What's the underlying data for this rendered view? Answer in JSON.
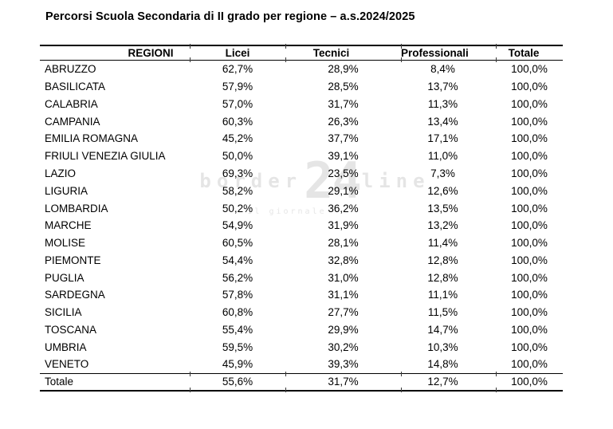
{
  "title": "Percorsi Scuola Secondaria di II grado per regione – a.s.2024/2025",
  "watermark": {
    "left": "border",
    "number": "24",
    "right": "line",
    "subtitle": "- Il giornale -"
  },
  "table": {
    "headers": [
      "REGIONI",
      "Licei",
      "Tecnici",
      "Professionali",
      "Totale"
    ],
    "rows": [
      {
        "region": "ABRUZZO",
        "values": [
          "62,7%",
          "28,9%",
          "8,4%",
          "100,0%"
        ]
      },
      {
        "region": "BASILICATA",
        "values": [
          "57,9%",
          "28,5%",
          "13,7%",
          "100,0%"
        ]
      },
      {
        "region": "CALABRIA",
        "values": [
          "57,0%",
          "31,7%",
          "11,3%",
          "100,0%"
        ]
      },
      {
        "region": "CAMPANIA",
        "values": [
          "60,3%",
          "26,3%",
          "13,4%",
          "100,0%"
        ]
      },
      {
        "region": "EMILIA ROMAGNA",
        "values": [
          "45,2%",
          "37,7%",
          "17,1%",
          "100,0%"
        ]
      },
      {
        "region": "FRIULI VENEZIA GIULIA",
        "values": [
          "50,0%",
          "39,1%",
          "11,0%",
          "100,0%"
        ]
      },
      {
        "region": "LAZIO",
        "values": [
          "69,3%",
          "23,5%",
          "7,3%",
          "100,0%"
        ]
      },
      {
        "region": "LIGURIA",
        "values": [
          "58,2%",
          "29,1%",
          "12,6%",
          "100,0%"
        ]
      },
      {
        "region": "LOMBARDIA",
        "values": [
          "50,2%",
          "36,2%",
          "13,5%",
          "100,0%"
        ]
      },
      {
        "region": "MARCHE",
        "values": [
          "54,9%",
          "31,9%",
          "13,2%",
          "100,0%"
        ]
      },
      {
        "region": "MOLISE",
        "values": [
          "60,5%",
          "28,1%",
          "11,4%",
          "100,0%"
        ]
      },
      {
        "region": "PIEMONTE",
        "values": [
          "54,4%",
          "32,8%",
          "12,8%",
          "100,0%"
        ]
      },
      {
        "region": "PUGLIA",
        "values": [
          "56,2%",
          "31,0%",
          "12,8%",
          "100,0%"
        ]
      },
      {
        "region": "SARDEGNA",
        "values": [
          "57,8%",
          "31,1%",
          "11,1%",
          "100,0%"
        ]
      },
      {
        "region": "SICILIA",
        "values": [
          "60,8%",
          "27,7%",
          "11,5%",
          "100,0%"
        ]
      },
      {
        "region": "TOSCANA",
        "values": [
          "55,4%",
          "29,9%",
          "14,7%",
          "100,0%"
        ]
      },
      {
        "region": "UMBRIA",
        "values": [
          "59,5%",
          "30,2%",
          "10,3%",
          "100,0%"
        ]
      },
      {
        "region": "VENETO",
        "values": [
          "45,9%",
          "39,3%",
          "14,8%",
          "100,0%"
        ]
      }
    ],
    "total": {
      "label": "Totale",
      "values": [
        "55,6%",
        "31,7%",
        "12,7%",
        "100,0%"
      ]
    }
  },
  "chart_data": {
    "type": "table",
    "title": "Percorsi Scuola Secondaria di II grado per regione – a.s.2024/2025",
    "columns": [
      "REGIONI",
      "Licei",
      "Tecnici",
      "Professionali",
      "Totale"
    ],
    "units": "percent",
    "rows": [
      [
        "ABRUZZO",
        62.7,
        28.9,
        8.4,
        100.0
      ],
      [
        "BASILICATA",
        57.9,
        28.5,
        13.7,
        100.0
      ],
      [
        "CALABRIA",
        57.0,
        31.7,
        11.3,
        100.0
      ],
      [
        "CAMPANIA",
        60.3,
        26.3,
        13.4,
        100.0
      ],
      [
        "EMILIA ROMAGNA",
        45.2,
        37.7,
        17.1,
        100.0
      ],
      [
        "FRIULI VENEZIA GIULIA",
        50.0,
        39.1,
        11.0,
        100.0
      ],
      [
        "LAZIO",
        69.3,
        23.5,
        7.3,
        100.0
      ],
      [
        "LIGURIA",
        58.2,
        29.1,
        12.6,
        100.0
      ],
      [
        "LOMBARDIA",
        50.2,
        36.2,
        13.5,
        100.0
      ],
      [
        "MARCHE",
        54.9,
        31.9,
        13.2,
        100.0
      ],
      [
        "MOLISE",
        60.5,
        28.1,
        11.4,
        100.0
      ],
      [
        "PIEMONTE",
        54.4,
        32.8,
        12.8,
        100.0
      ],
      [
        "PUGLIA",
        56.2,
        31.0,
        12.8,
        100.0
      ],
      [
        "SARDEGNA",
        57.8,
        31.1,
        11.1,
        100.0
      ],
      [
        "SICILIA",
        60.8,
        27.7,
        11.5,
        100.0
      ],
      [
        "TOSCANA",
        55.4,
        29.9,
        14.7,
        100.0
      ],
      [
        "UMBRIA",
        59.5,
        30.2,
        10.3,
        100.0
      ],
      [
        "VENETO",
        45.9,
        39.3,
        14.8,
        100.0
      ],
      [
        "Totale",
        55.6,
        31.7,
        12.7,
        100.0
      ]
    ]
  }
}
